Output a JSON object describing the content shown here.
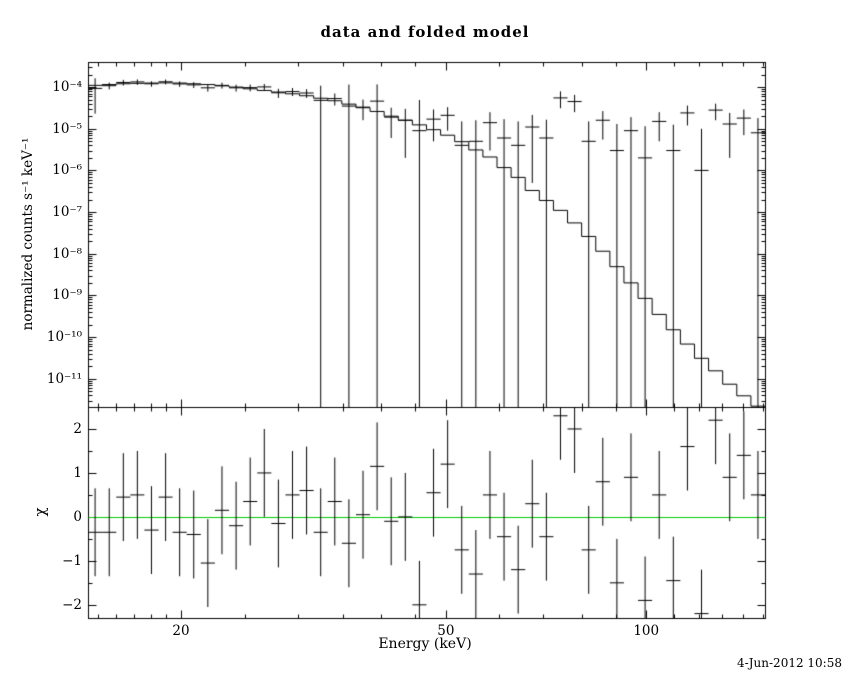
{
  "chart_data": {
    "type": "scatter",
    "subtype": "X-ray spectrum: data points with error bars, folded model histogram (top), chi residuals with zero line (bottom)",
    "title": "data and folded model",
    "xlabel": "Energy (keV)",
    "ylabel_top": "normalized counts s⁻¹ keV⁻¹",
    "ylabel_bottom": "χ",
    "timestamp": "4-Jun-2012 10:58",
    "x_scale": "log",
    "y_scale_top": "log",
    "y_scale_bottom": "linear",
    "xlim": [
      14.5,
      150.81
    ],
    "ylim_top": [
      2.1e-12,
      0.0004
    ],
    "ylim_bottom": [
      -2.3,
      2.5
    ],
    "x_major_ticks": [
      20,
      50,
      100
    ],
    "x_major_tick_labels": [
      "20",
      "50",
      "100"
    ],
    "x_minor_ticks": [
      15,
      16,
      17,
      18,
      19,
      25,
      30,
      35,
      40,
      45,
      60,
      70,
      80,
      90,
      110,
      120,
      130,
      140,
      150
    ],
    "y_top_tick_exponents": [
      -4,
      -5,
      -6,
      -7,
      -8,
      -9,
      -10,
      -11
    ],
    "y_top_tick_labels": [
      "10⁻⁴",
      "10⁻⁵",
      "10⁻⁶",
      "10⁻⁷",
      "10⁻⁸",
      "10⁻⁹",
      "10⁻¹⁰",
      "10⁻¹¹"
    ],
    "y_bottom_ticks": [
      2,
      1,
      0,
      -1,
      -2
    ],
    "y_bottom_tick_labels": [
      "2",
      "1",
      "0",
      "−1",
      "−2"
    ],
    "colors": {
      "data": "#000000",
      "model": "#000000",
      "zero_line": "#00cc00",
      "background": "#ffffff",
      "frame": "#000000"
    },
    "bins": {
      "energy_edges_keV": [
        14.5,
        15.23,
        15.99,
        16.79,
        17.62,
        18.51,
        19.43,
        20.4,
        21.42,
        22.49,
        23.62,
        24.8,
        26.04,
        27.34,
        28.71,
        30.14,
        31.65,
        33.23,
        34.89,
        36.64,
        38.47,
        40.39,
        42.41,
        44.53,
        46.76,
        49.1,
        51.55,
        54.13,
        56.84,
        59.68,
        62.66,
        65.8,
        69.09,
        72.54,
        76.17,
        79.98,
        83.98,
        88.18,
        92.58,
        97.21,
        102.07,
        107.18,
        112.54,
        118.16,
        124.07,
        130.27,
        136.79,
        143.63,
        150.81
      ],
      "data_counts": [
        9.3e-05,
        0.000108,
        0.000129,
        0.000133,
        0.00012,
        0.000134,
        0.000119,
        0.000113,
        9.6e-05,
        0.00011,
        9.6e-05,
        9.7e-05,
        0.000101,
        7.3e-05,
        7.8e-05,
        7.2e-05,
        4.8e-05,
        5.3e-05,
        3.5e-05,
        3.3e-05,
        4.6e-05,
        1.9e-05,
        1.6e-05,
        9e-06,
        1.7e-05,
        2.1e-05,
        4e-06,
        5e-06,
        1.4e-05,
        6e-06,
        4e-06,
        1.1e-05,
        6e-06,
        5.5e-05,
        4.5e-05,
        5e-06,
        1.6e-05,
        3e-06,
        9e-06,
        2e-06,
        1.5e-05,
        3e-06,
        2.4e-05,
        1e-06,
        2.8e-05,
        1.3e-05,
        1.8e-05,
        8e-06
      ],
      "data_err": [
        7e-05,
        2e-05,
        2e-05,
        2e-05,
        1.8e-05,
        1.8e-05,
        1.8e-05,
        1.8e-05,
        1.8e-05,
        1.8e-05,
        1.8e-05,
        1.8e-05,
        1.8e-05,
        1.8e-05,
        1.7e-05,
        1.7e-05,
        6e-05,
        1.7e-05,
        8e-05,
        1.7e-05,
        7e-05,
        1.3e-05,
        1.4e-05,
        4e-05,
        1.2e-05,
        1.2e-05,
        1.1e-05,
        1.1e-05,
        1.1e-05,
        1.1e-05,
        1.1e-05,
        1.05e-05,
        1.05e-05,
        2.4e-05,
        2e-05,
        1e-05,
        1.05e-05,
        1e-05,
        1e-05,
        9.5e-06,
        1e-05,
        9.5e-06,
        1.2e-05,
        9e-06,
        1.2e-05,
        1.1e-05,
        1.1e-05,
        1e-05
      ],
      "model_counts": [
        0.00011,
        0.000115,
        0.00012,
        0.000123,
        0.000125,
        0.000126,
        0.000125,
        0.00012,
        0.000115,
        0.000107,
        0.0001,
        9.1e-05,
        8.3e-05,
        7.6e-05,
        6.9e-05,
        6.2e-05,
        5.4e-05,
        4.7e-05,
        3.9e-05,
        3.2e-05,
        2.6e-05,
        2e-05,
        1.6e-05,
        1.24e-05,
        9.5e-06,
        7e-06,
        4.9e-06,
        3.1e-06,
        2.1e-06,
        1.17e-06,
        6.8e-07,
        3.3e-07,
        1.9e-07,
        1.1e-07,
        5.5e-08,
        2.6e-08,
        1.15e-08,
        4.9e-09,
        2e-09,
        8.5e-10,
        3.5e-10,
        1.5e-10,
        6.8e-11,
        3.1e-11,
        1.55e-11,
        7.4e-12,
        3.9e-12,
        2.2e-12
      ],
      "chi": [
        -0.35,
        -0.35,
        0.45,
        0.5,
        -0.3,
        0.45,
        -0.35,
        -0.4,
        -1.05,
        0.15,
        -0.2,
        0.35,
        1.0,
        -0.15,
        0.5,
        0.6,
        -0.35,
        0.35,
        -0.6,
        0.05,
        1.15,
        -0.1,
        0.0,
        -2.0,
        0.55,
        1.2,
        -0.75,
        -1.3,
        0.5,
        -0.45,
        -1.2,
        0.3,
        -0.45,
        2.3,
        2.0,
        -0.75,
        0.8,
        -1.5,
        0.9,
        -1.9,
        0.5,
        -1.45,
        1.6,
        -2.2,
        2.2,
        0.9,
        1.4,
        0.5
      ],
      "chi_err": 1
    }
  }
}
